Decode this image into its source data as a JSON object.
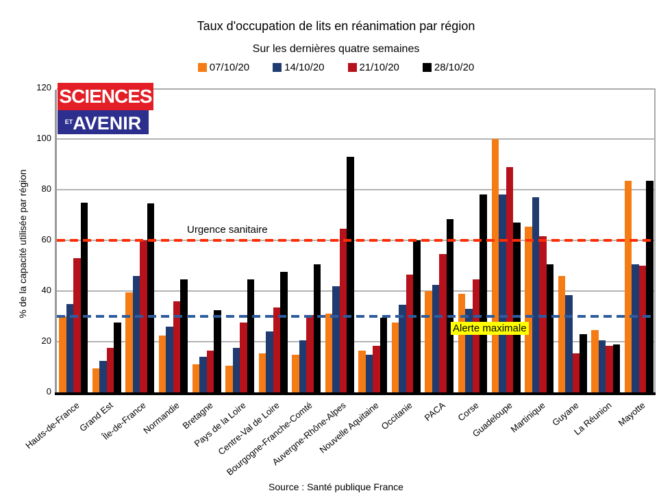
{
  "title": "Taux d'occupation de lits en réanimation par région",
  "subtitle": "Sur les dernières quatre semaines",
  "source": "Source : Santé publique France",
  "logo": {
    "line1": "SCIENCES",
    "line2_prefix": "ET",
    "line2": "AVENIR",
    "red_color": "#e31e26",
    "blue_color": "#2d2f8f"
  },
  "y_axis": {
    "label": "% de la capacité utilisée par région",
    "ticks": [
      0,
      20,
      40,
      60,
      80,
      100,
      120
    ]
  },
  "annotations": {
    "urgence": {
      "label": "Urgence sanitaire",
      "value": 60,
      "line_color": "#ff2d05"
    },
    "alerte": {
      "label": "Alerte maximale",
      "value": 30,
      "line_color": "#2e5c9e",
      "highlight_color": "#ffff00"
    }
  },
  "chart_data": {
    "type": "bar",
    "title": "Taux d'occupation de lits en réanimation par région",
    "subtitle": "Sur les dernières quatre semaines",
    "ylabel": "% de la capacité utilisée par région",
    "xlabel": "",
    "ylim": [
      0,
      120
    ],
    "grid": true,
    "legend_position": "top",
    "categories": [
      "Hauts-de-France",
      "Grand Est",
      "Île-de-France",
      "Normandie",
      "Bretagne",
      "Pays de la Loire",
      "Centre-Val de Loire",
      "Bourgogne-Franche-Comté",
      "Auvergne-Rhône-Alpes",
      "Nouvelle Aquitaine",
      "Occitanie",
      "PACA",
      "Corse",
      "Guadeloupe",
      "Martinique",
      "Guyane",
      "La Réunion",
      "Mayotte"
    ],
    "series": [
      {
        "name": "07/10/20",
        "color": "#f57c14",
        "values": [
          30,
          9.5,
          39.5,
          22.5,
          11,
          10.5,
          15.5,
          15,
          31,
          16.5,
          27.5,
          40,
          39,
          100,
          65.5,
          46,
          24.5,
          83.5
        ]
      },
      {
        "name": "14/10/20",
        "color": "#1f3b6f",
        "values": [
          35,
          12.5,
          46,
          26,
          14,
          17.5,
          24,
          20.5,
          42,
          15,
          34.5,
          42.5,
          33,
          78,
          77,
          38.5,
          20.5,
          50.5
        ]
      },
      {
        "name": "21/10/20",
        "color": "#b5121b",
        "values": [
          53,
          17.5,
          60,
          36,
          16.5,
          27.5,
          33.5,
          30.5,
          64.5,
          18.5,
          46.5,
          54.5,
          44.5,
          89,
          61.5,
          15.5,
          18.5,
          50
        ]
      },
      {
        "name": "28/10/20",
        "color": "#000000",
        "values": [
          75,
          27.5,
          74.5,
          44.5,
          32.5,
          44.5,
          47.5,
          50.5,
          93,
          29.5,
          60,
          68.5,
          78,
          67,
          50.5,
          23,
          19,
          83.5
        ]
      }
    ],
    "reference_lines": [
      {
        "label": "Urgence sanitaire",
        "value": 60
      },
      {
        "label": "Alerte maximale",
        "value": 30
      }
    ]
  }
}
